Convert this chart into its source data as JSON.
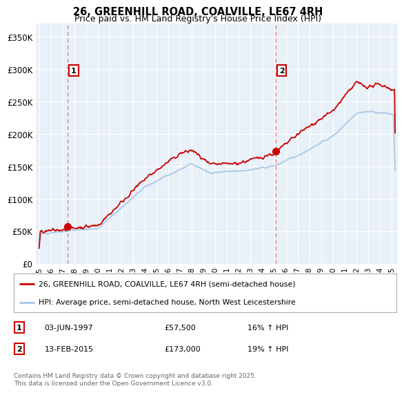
{
  "title": "26, GREENHILL ROAD, COALVILLE, LE67 4RH",
  "subtitle": "Price paid vs. HM Land Registry's House Price Index (HPI)",
  "ylabel_ticks": [
    "£0",
    "£50K",
    "£100K",
    "£150K",
    "£200K",
    "£250K",
    "£300K",
    "£350K"
  ],
  "ytick_values": [
    0,
    50000,
    100000,
    150000,
    200000,
    250000,
    300000,
    350000
  ],
  "ylim": [
    0,
    370000
  ],
  "xlim_start": 1994.7,
  "xlim_end": 2025.5,
  "hpi_color": "#a8c8e8",
  "price_color": "#cc0000",
  "dashed_line_color": "#e08080",
  "bg_color": "#e8f0f8",
  "marker1_x": 1997.42,
  "marker1_y": 57500,
  "marker2_x": 2015.12,
  "marker2_y": 173000,
  "legend_label1": "26, GREENHILL ROAD, COALVILLE, LE67 4RH (semi-detached house)",
  "legend_label2": "HPI: Average price, semi-detached house, North West Leicestershire",
  "table_row1": [
    "1",
    "03-JUN-1997",
    "£57,500",
    "16% ↑ HPI"
  ],
  "table_row2": [
    "2",
    "13-FEB-2015",
    "£173,000",
    "19% ↑ HPI"
  ],
  "footer": "Contains HM Land Registry data © Crown copyright and database right 2025.\nThis data is licensed under the Open Government Licence v3.0.",
  "xtick_years": [
    1995,
    1996,
    1997,
    1998,
    1999,
    2000,
    2001,
    2002,
    2003,
    2004,
    2005,
    2006,
    2007,
    2008,
    2009,
    2010,
    2011,
    2012,
    2013,
    2014,
    2015,
    2016,
    2017,
    2018,
    2019,
    2020,
    2021,
    2022,
    2023,
    2024,
    2025
  ]
}
